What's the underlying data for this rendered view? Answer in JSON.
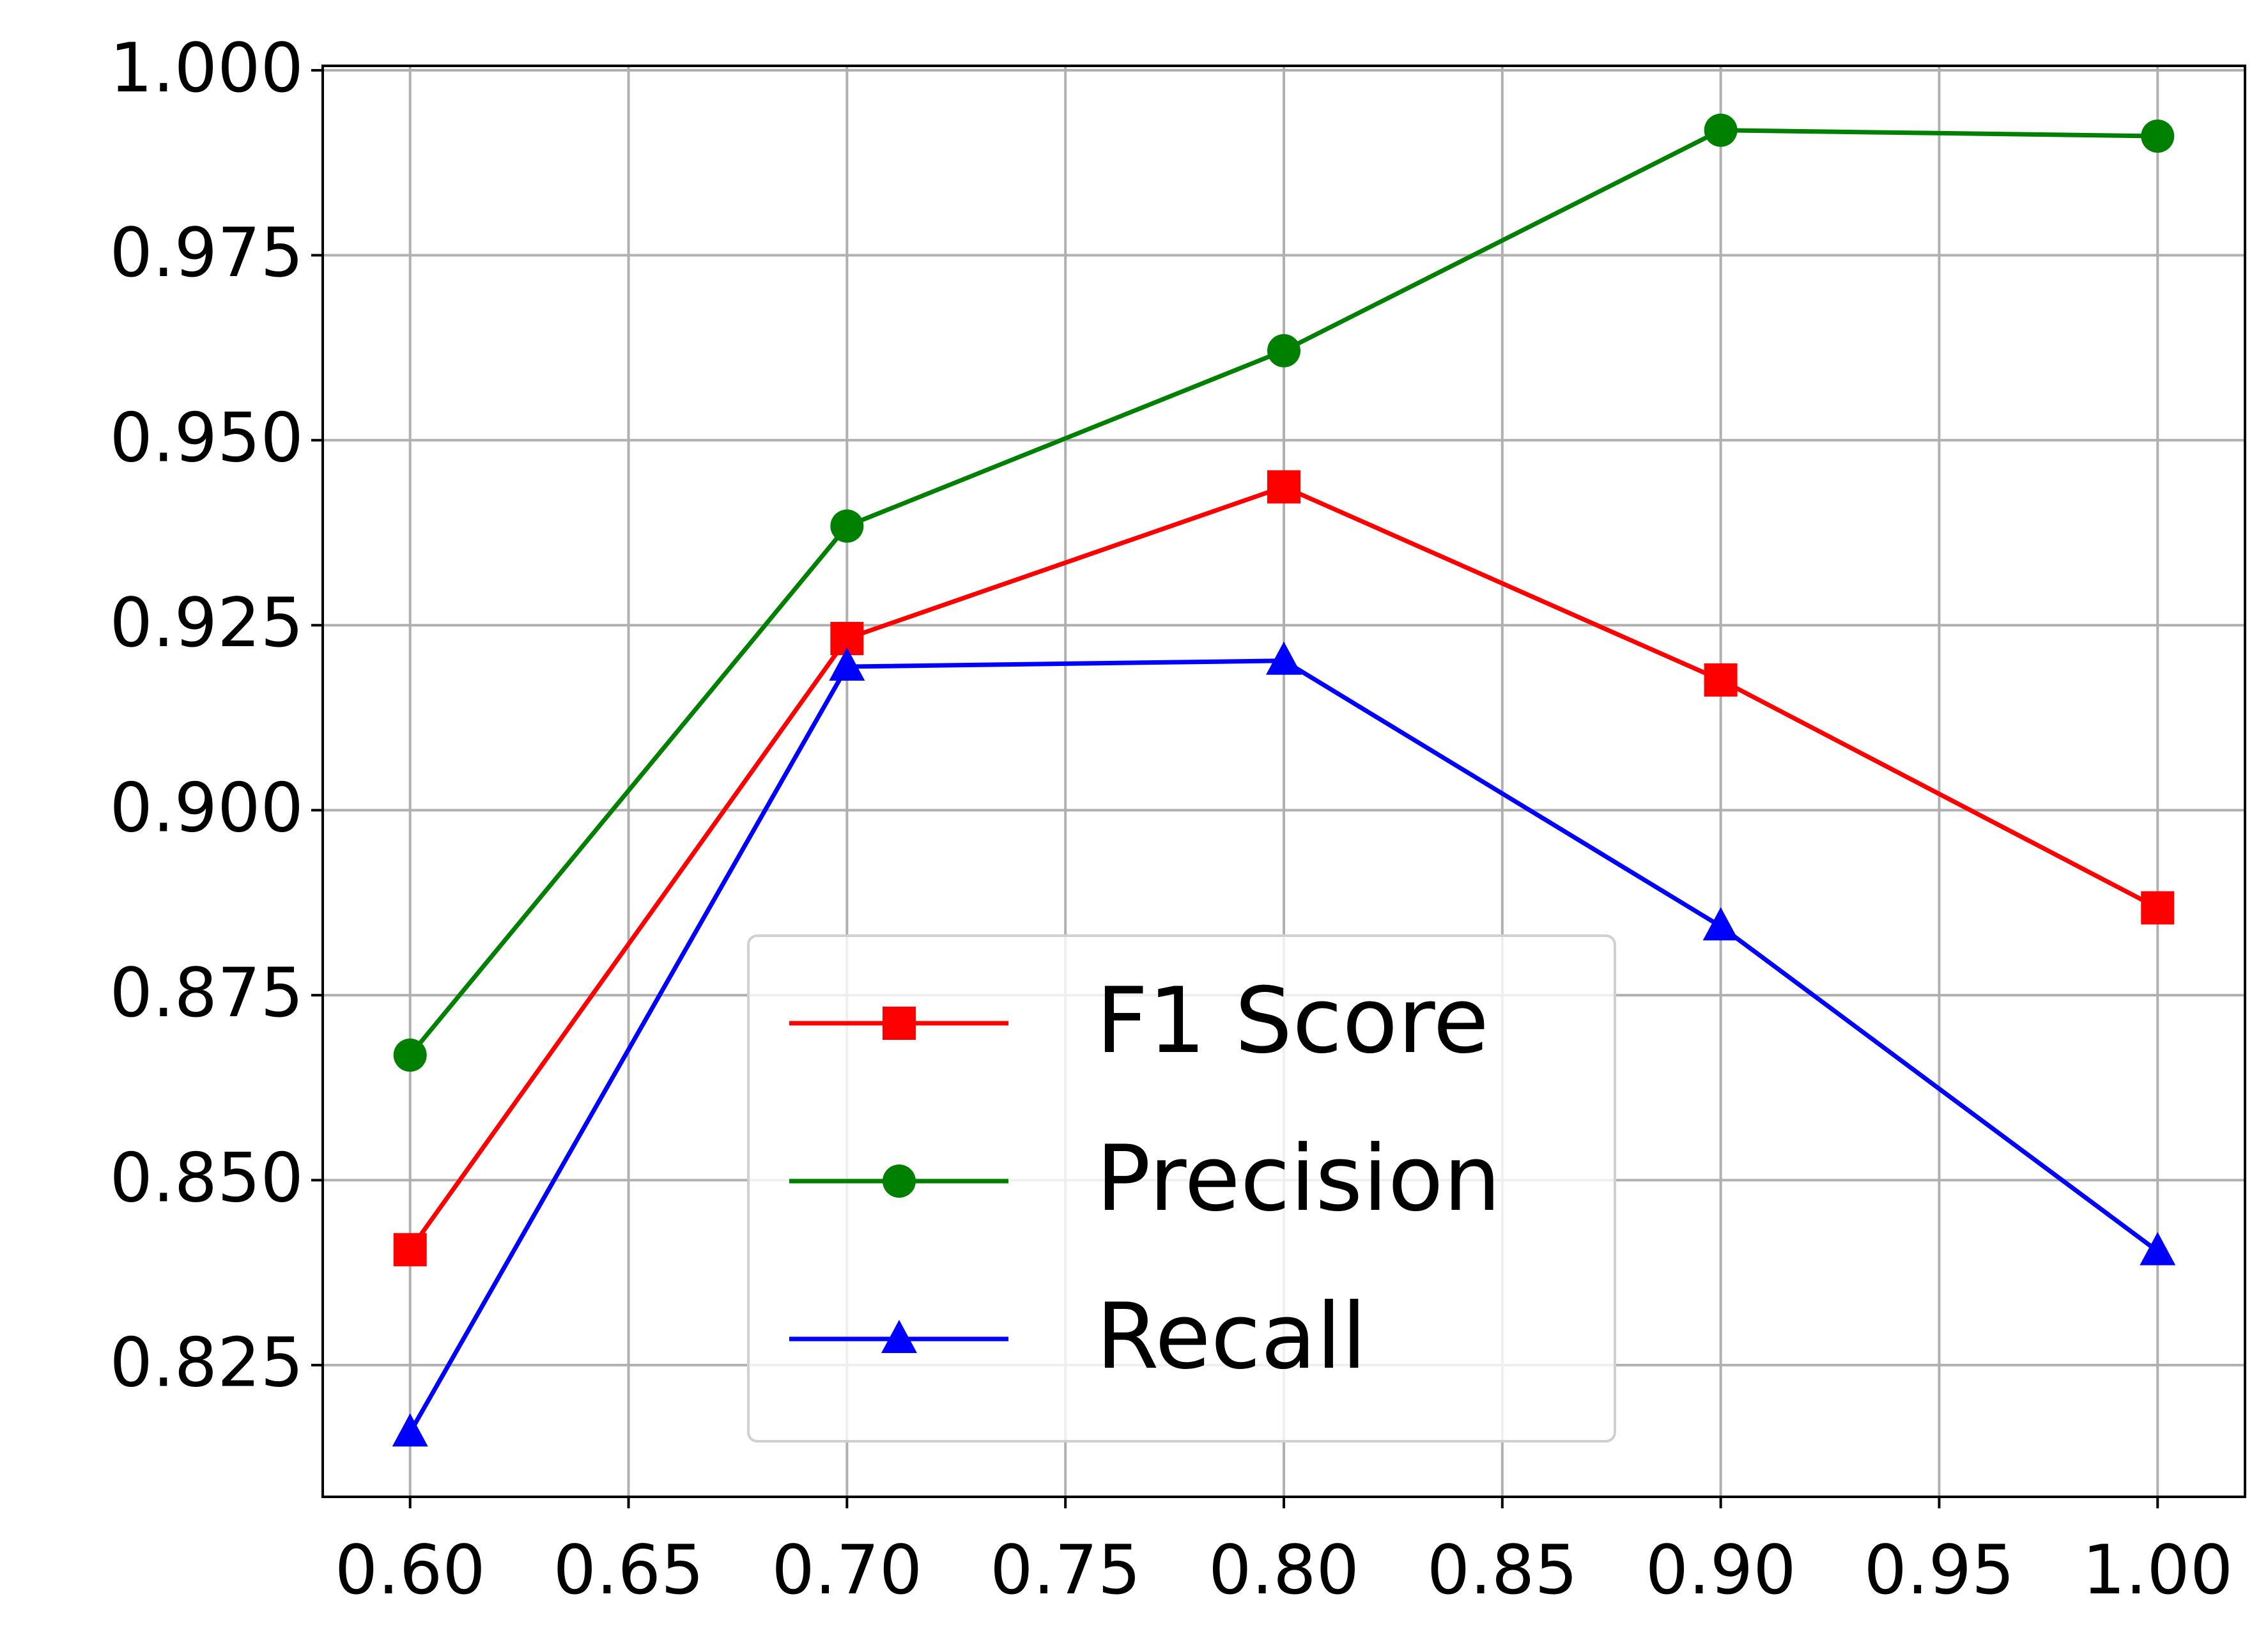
{
  "chart_data": {
    "type": "line",
    "x": [
      0.6,
      0.7,
      0.8,
      0.9,
      1.0
    ],
    "series": [
      {
        "name": "F1 Score",
        "color": "#ff0000",
        "marker": "square",
        "values": [
          0.8406,
          0.9232,
          0.9437,
          0.9176,
          0.8868
        ]
      },
      {
        "name": "Precision",
        "color": "#008000",
        "marker": "circle",
        "values": [
          0.8669,
          0.9384,
          0.9621,
          0.9919,
          0.9911
        ]
      },
      {
        "name": "Recall",
        "color": "#0000ff",
        "marker": "triangle",
        "values": [
          0.8159,
          0.9194,
          0.9202,
          0.8843,
          0.8404
        ]
      }
    ],
    "xlim": [
      0.58,
      1.02
    ],
    "xticks": [
      {
        "value": 0.6,
        "label": "0.60"
      },
      {
        "value": 0.65,
        "label": "0.65"
      },
      {
        "value": 0.7,
        "label": "0.70"
      },
      {
        "value": 0.75,
        "label": "0.75"
      },
      {
        "value": 0.8,
        "label": "0.80"
      },
      {
        "value": 0.85,
        "label": "0.85"
      },
      {
        "value": 0.9,
        "label": "0.90"
      },
      {
        "value": 0.95,
        "label": "0.95"
      },
      {
        "value": 1.0,
        "label": "1.00"
      }
    ],
    "ylim": [
      0.8072,
      1.0006
    ],
    "yticks": [
      {
        "value": 0.825,
        "label": "0.825"
      },
      {
        "value": 0.85,
        "label": "0.850"
      },
      {
        "value": 0.875,
        "label": "0.875"
      },
      {
        "value": 0.9,
        "label": "0.900"
      },
      {
        "value": 0.925,
        "label": "0.925"
      },
      {
        "value": 0.95,
        "label": "0.950"
      },
      {
        "value": 0.975,
        "label": "0.975"
      },
      {
        "value": 1.0,
        "label": "1.000"
      }
    ],
    "grid": true,
    "legend_loc": "lower center"
  }
}
